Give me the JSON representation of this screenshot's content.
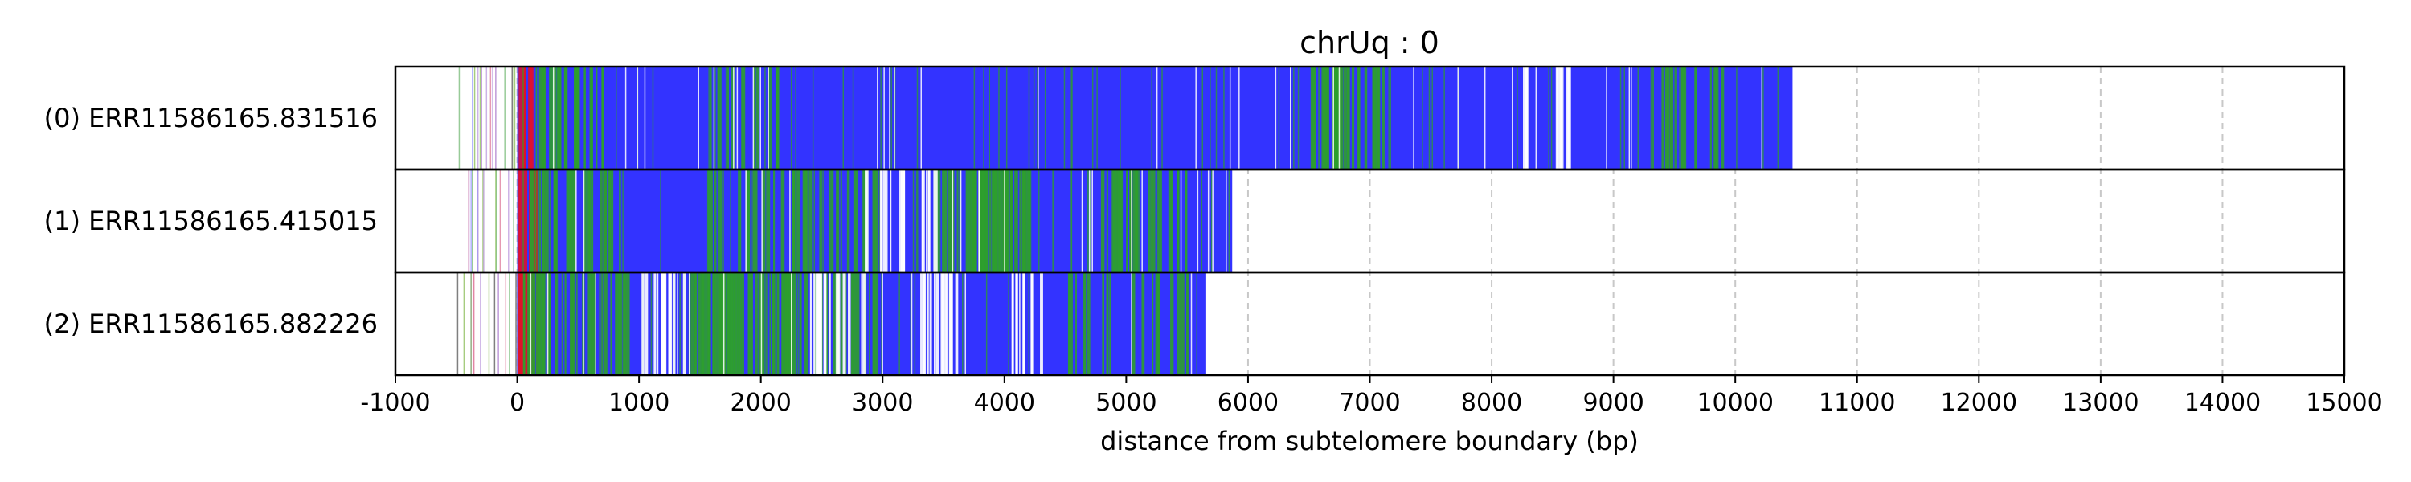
{
  "chart_data": {
    "type": "bar",
    "title": "chrUq : 0",
    "xlabel": "distance from subtelomere boundary (bp)",
    "xlim": [
      -1000,
      15000
    ],
    "xticks": [
      -1000,
      0,
      1000,
      2000,
      3000,
      4000,
      5000,
      6000,
      7000,
      8000,
      9000,
      10000,
      11000,
      12000,
      13000,
      14000,
      15000
    ],
    "grid": "vertical-dashed",
    "colors": {
      "main": "#3333ff",
      "green": "#2e9e2e",
      "red": "#e0102a",
      "light": "#ffffff"
    },
    "reads": [
      {
        "label": "(0) ERR11586165.831516",
        "start": -500,
        "end": 10470,
        "green_clusters": [
          [
            150,
            700,
            0.35
          ],
          [
            1500,
            2200,
            0.15
          ],
          [
            6500,
            7100,
            0.45
          ],
          [
            9300,
            10000,
            0.2
          ]
        ],
        "red_region": [
          0,
          120
        ],
        "white_clusters": [
          [
            8250,
            8300,
            0.9
          ],
          [
            8500,
            8650,
            0.5
          ]
        ]
      },
      {
        "label": "(1) ERR11586165.415015",
        "start": -400,
        "end": 5870,
        "green_clusters": [
          [
            100,
            900,
            0.3
          ],
          [
            1500,
            3000,
            0.2
          ],
          [
            3400,
            4200,
            0.55
          ],
          [
            4500,
            5500,
            0.25
          ]
        ],
        "red_region": [
          0,
          150
        ],
        "white_clusters": [
          [
            2800,
            3200,
            0.3
          ],
          [
            3300,
            3500,
            0.4
          ]
        ]
      },
      {
        "label": "(2) ERR11586165.882226",
        "start": -500,
        "end": 5650,
        "green_clusters": [
          [
            0,
            900,
            0.35
          ],
          [
            1400,
            2300,
            0.55
          ],
          [
            2300,
            3000,
            0.25
          ],
          [
            4500,
            5500,
            0.15
          ]
        ],
        "red_region": [
          0,
          200
        ],
        "white_clusters": [
          [
            1000,
            1400,
            0.35
          ],
          [
            2400,
            2900,
            0.3
          ],
          [
            3300,
            3600,
            0.55
          ],
          [
            4000,
            4300,
            0.35
          ]
        ]
      }
    ]
  }
}
